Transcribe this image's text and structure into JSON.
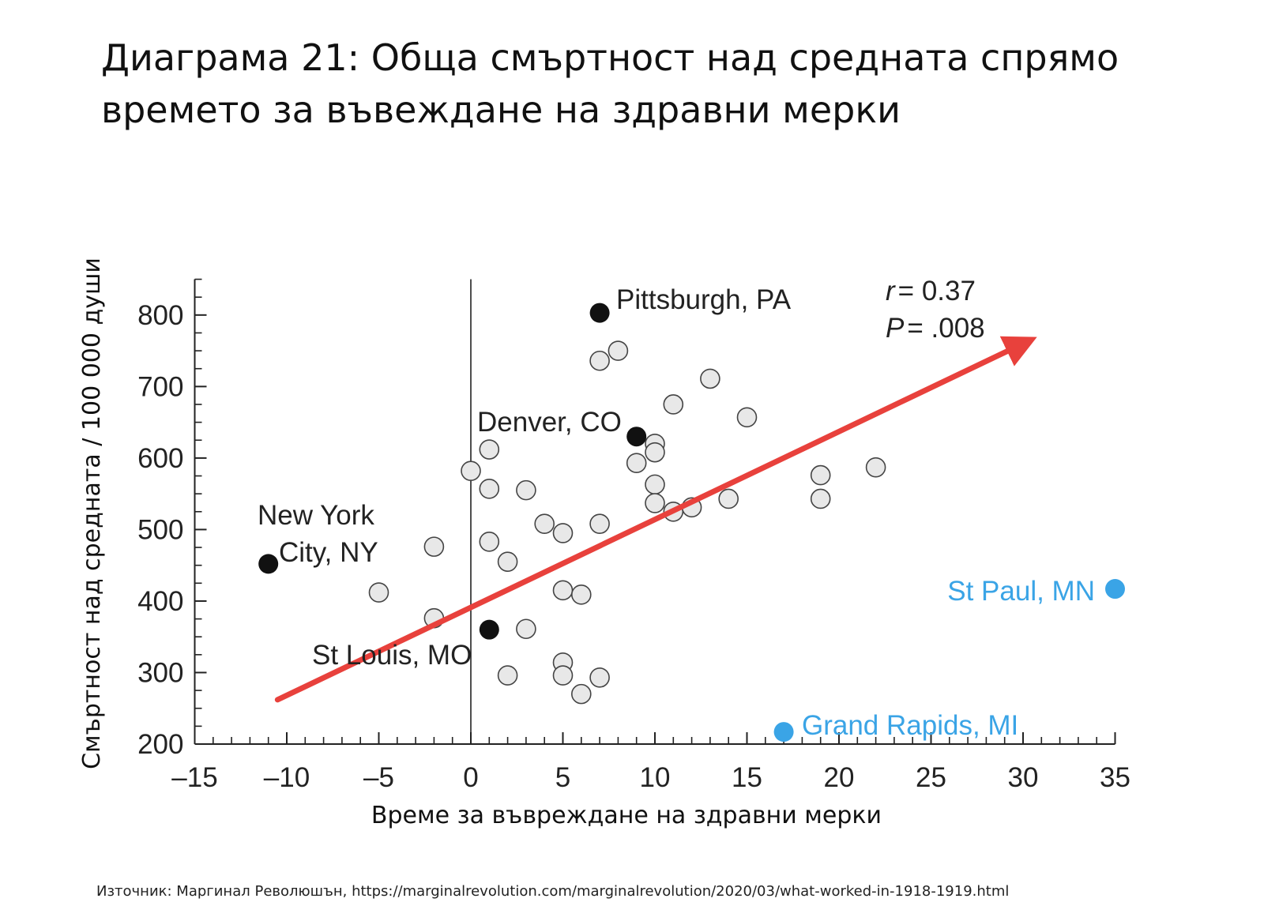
{
  "title": {
    "line1": "Диаграма 21: Обща смъртност над средната спрямо",
    "line2": "времето за въвеждане на здравни мерки"
  },
  "source": "Източник: Маргинал Революшън, https://marginalrevolution.com/marginalrevolution/2020/03/what-worked-in-1918-1919.html",
  "colors": {
    "axis": "#222222",
    "open_point_fill": "#e8e8e8",
    "open_point_stroke": "#444444",
    "highlight_point": "#111111",
    "outlier_point": "#3aa4e6",
    "trend_arrow": "#e8413c"
  },
  "chart_data": {
    "type": "scatter",
    "xlabel": "Време за въвреждане на здравни мерки",
    "ylabel": "Смъртност над средната / 100 000 души",
    "xlim": [
      -15,
      35
    ],
    "ylim": [
      200,
      850
    ],
    "xticks": [
      -15,
      -10,
      -5,
      0,
      5,
      10,
      15,
      20,
      25,
      30,
      35
    ],
    "xtick_labels": [
      "–15",
      "–10",
      "–5",
      "0",
      "5",
      "10",
      "15",
      "20",
      "25",
      "30",
      "35"
    ],
    "yticks": [
      200,
      300,
      400,
      500,
      600,
      700,
      800
    ],
    "stats": {
      "r_label": "r",
      "r_value": "= 0.37",
      "p_label": "P",
      "p_value": "= .008"
    },
    "series": [
      {
        "name": "cities",
        "style": "open",
        "points": [
          {
            "x": 7,
            "y": 736
          },
          {
            "x": 8,
            "y": 750
          },
          {
            "x": 13,
            "y": 711
          },
          {
            "x": 11,
            "y": 675
          },
          {
            "x": 15,
            "y": 657
          },
          {
            "x": 1,
            "y": 612
          },
          {
            "x": 10,
            "y": 620
          },
          {
            "x": 10,
            "y": 608
          },
          {
            "x": 9,
            "y": 593
          },
          {
            "x": 0,
            "y": 582
          },
          {
            "x": 1,
            "y": 557
          },
          {
            "x": 3,
            "y": 555
          },
          {
            "x": 10,
            "y": 563
          },
          {
            "x": 19,
            "y": 576
          },
          {
            "x": 22,
            "y": 587
          },
          {
            "x": 10,
            "y": 537
          },
          {
            "x": 11,
            "y": 525
          },
          {
            "x": 12,
            "y": 531
          },
          {
            "x": 14,
            "y": 543
          },
          {
            "x": 19,
            "y": 543
          },
          {
            "x": 4,
            "y": 508
          },
          {
            "x": 5,
            "y": 495
          },
          {
            "x": 7,
            "y": 508
          },
          {
            "x": 1,
            "y": 483
          },
          {
            "x": -2,
            "y": 476
          },
          {
            "x": 2,
            "y": 455
          },
          {
            "x": -5,
            "y": 412
          },
          {
            "x": 5,
            "y": 415
          },
          {
            "x": 6,
            "y": 409
          },
          {
            "x": -2,
            "y": 376
          },
          {
            "x": 3,
            "y": 361
          },
          {
            "x": 5,
            "y": 314
          },
          {
            "x": 2,
            "y": 296
          },
          {
            "x": 5,
            "y": 296
          },
          {
            "x": 7,
            "y": 293
          },
          {
            "x": 6,
            "y": 270
          }
        ]
      },
      {
        "name": "highlighted",
        "style": "black",
        "points": [
          {
            "x": 7,
            "y": 803,
            "label": "Pittsburgh, PA"
          },
          {
            "x": 9,
            "y": 630,
            "label": "Denver, CO"
          },
          {
            "x": -11,
            "y": 452,
            "label": "New York City, NY",
            "label_lines": [
              "New York",
              "City, NY"
            ]
          },
          {
            "x": 1,
            "y": 360,
            "label": "St Louis, MO"
          }
        ]
      },
      {
        "name": "outliers",
        "style": "blue",
        "points": [
          {
            "x": 35,
            "y": 417,
            "label": "St Paul, MN"
          },
          {
            "x": 17,
            "y": 217,
            "label": "Grand Rapids, MI"
          }
        ]
      }
    ],
    "trend_arrow": {
      "from": {
        "x": -10.5,
        "y": 262
      },
      "to": {
        "x": 30,
        "y": 760
      }
    }
  }
}
